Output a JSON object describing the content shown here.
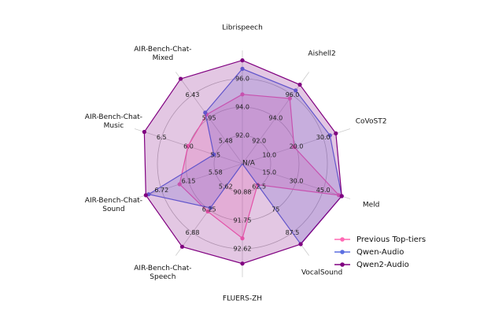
{
  "chart_data": {
    "type": "radar",
    "center_label": "N/A",
    "categories": [
      "Librispeech",
      "Aishell2",
      "CoVoST2",
      "Meld",
      "VocalSound",
      "FLUERS-ZH",
      "AIR-Bench-Chat-\nSpeech",
      "AIR-Bench-Chat-\nSound",
      "AIR-Bench-Chat-\nMusic",
      "AIR-Bench-Chat-\nMixed"
    ],
    "axes": [
      {
        "range": [
          90,
          98
        ],
        "ticks": [
          {
            "value": 92,
            "label": "92.0"
          },
          {
            "value": 94,
            "label": "94.0"
          },
          {
            "value": 96,
            "label": "96.0"
          }
        ]
      },
      {
        "range": [
          90,
          98
        ],
        "ticks": [
          {
            "value": 92,
            "label": "92.0"
          },
          {
            "value": 94,
            "label": "94.0"
          },
          {
            "value": 96,
            "label": "96.0"
          }
        ]
      },
      {
        "range": [
          0,
          40
        ],
        "ticks": [
          {
            "value": 10,
            "label": "10.0"
          },
          {
            "value": 20,
            "label": "20.0"
          },
          {
            "value": 30,
            "label": "30.0"
          }
        ]
      },
      {
        "range": [
          0,
          60
        ],
        "ticks": [
          {
            "value": 15,
            "label": "15.0"
          },
          {
            "value": 30,
            "label": "30.0"
          },
          {
            "value": 45,
            "label": "45.0"
          }
        ]
      },
      {
        "range": [
          50,
          100
        ],
        "ticks": [
          62.5,
          75,
          87.5
        ]
      },
      {
        "range": [
          90,
          93.5
        ],
        "ticks": [
          {
            "value": 90.875,
            "label": "90.88"
          },
          91.75,
          {
            "value": 92.625,
            "label": "92.62"
          }
        ]
      },
      {
        "range": [
          5,
          7.5
        ],
        "ticks": [
          {
            "value": 5.625,
            "label": "5.62"
          },
          6.25,
          {
            "value": 6.875,
            "label": "6.88"
          }
        ]
      },
      {
        "range": [
          5,
          7.3
        ],
        "ticks": [
          {
            "value": 5.575,
            "label": "5.58"
          },
          6.15,
          {
            "value": 6.725,
            "label": "6.72"
          }
        ]
      },
      {
        "range": [
          5,
          7
        ],
        "ticks": [
          5.5,
          {
            "value": 6,
            "label": "6.0"
          },
          6.5
        ]
      },
      {
        "range": [
          5,
          6.9
        ],
        "ticks": [
          {
            "value": 5.475,
            "label": "5.48"
          },
          5.95,
          {
            "value": 6.425,
            "label": "6.43"
          }
        ]
      }
    ],
    "series": [
      {
        "name": "Previous Top-tiers",
        "color": "#ff69b4",
        "values": [
          94.9,
          95.7,
          19.2,
          53.7,
          61.4,
          92.3,
          6.3,
          6.34,
          6.01,
          6.02
        ]
      },
      {
        "name": "Qwen-Audio",
        "color": "#5b6ee1",
        "values": [
          96.7,
          96.4,
          32.5,
          55.3,
          93.7,
          null,
          6.2,
          7.0,
          5.53,
          6.06
        ]
      },
      {
        "name": "Qwen2-Audio",
        "color": "#800080",
        "values": [
          97.3,
          96.9,
          34.7,
          55.3,
          93.8,
          93.08,
          7.26,
          7.06,
          6.82,
          6.76
        ]
      }
    ],
    "legend_position": "lower right"
  }
}
